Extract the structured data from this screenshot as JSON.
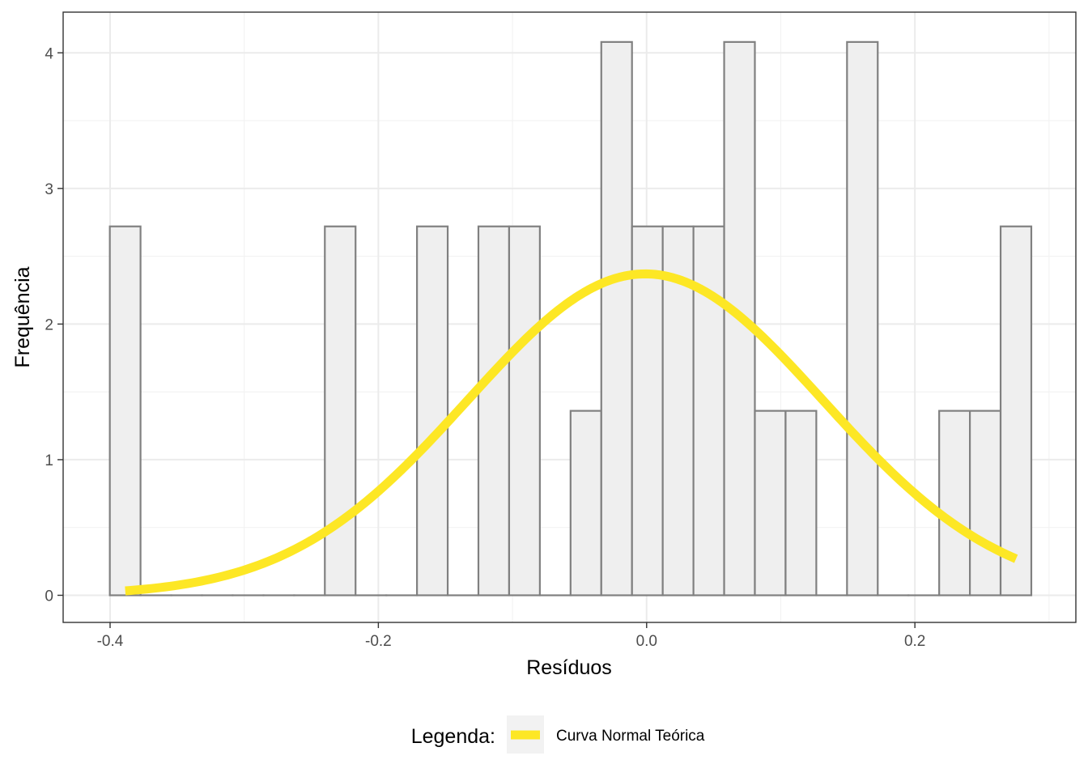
{
  "chart_data": {
    "type": "bar",
    "subtype": "histogram",
    "title": "",
    "xlabel": "Resíduos",
    "ylabel": "Frequência",
    "xlim": [
      -0.435,
      0.32
    ],
    "ylim": [
      -0.2,
      4.3
    ],
    "x_ticks": [
      -0.4,
      -0.2,
      0.0,
      0.2
    ],
    "x_tick_labels": [
      "-0.4",
      "-0.2",
      "0.0",
      "0.2"
    ],
    "y_ticks": [
      0,
      1,
      2,
      3,
      4
    ],
    "y_tick_labels": [
      "0",
      "1",
      "2",
      "3",
      "4"
    ],
    "bin_width": 0.0229,
    "bins": [
      {
        "x0": -0.4002,
        "x1": -0.3773,
        "count": 2.72
      },
      {
        "x0": -0.3773,
        "x1": -0.3544,
        "count": 0
      },
      {
        "x0": -0.3544,
        "x1": -0.3315,
        "count": 0
      },
      {
        "x0": -0.3315,
        "x1": -0.3086,
        "count": 0
      },
      {
        "x0": -0.3086,
        "x1": -0.2857,
        "count": 0
      },
      {
        "x0": -0.2857,
        "x1": -0.2628,
        "count": 0
      },
      {
        "x0": -0.2628,
        "x1": -0.2399,
        "count": 0
      },
      {
        "x0": -0.2399,
        "x1": -0.217,
        "count": 2.72
      },
      {
        "x0": -0.217,
        "x1": -0.1941,
        "count": 0
      },
      {
        "x0": -0.1941,
        "x1": -0.1712,
        "count": 0
      },
      {
        "x0": -0.1712,
        "x1": -0.1483,
        "count": 2.72
      },
      {
        "x0": -0.1483,
        "x1": -0.1254,
        "count": 0
      },
      {
        "x0": -0.1254,
        "x1": -0.1025,
        "count": 2.72
      },
      {
        "x0": -0.1025,
        "x1": -0.0796,
        "count": 2.72
      },
      {
        "x0": -0.0796,
        "x1": -0.0567,
        "count": 0
      },
      {
        "x0": -0.0567,
        "x1": -0.0338,
        "count": 1.36
      },
      {
        "x0": -0.0338,
        "x1": -0.0109,
        "count": 4.08
      },
      {
        "x0": -0.0109,
        "x1": 0.012,
        "count": 2.72
      },
      {
        "x0": 0.012,
        "x1": 0.0349,
        "count": 2.72
      },
      {
        "x0": 0.0349,
        "x1": 0.0578,
        "count": 2.72
      },
      {
        "x0": 0.0578,
        "x1": 0.0807,
        "count": 4.08
      },
      {
        "x0": 0.0807,
        "x1": 0.1036,
        "count": 1.36
      },
      {
        "x0": 0.1036,
        "x1": 0.1265,
        "count": 1.36
      },
      {
        "x0": 0.1265,
        "x1": 0.1494,
        "count": 0
      },
      {
        "x0": 0.1494,
        "x1": 0.1723,
        "count": 4.08
      },
      {
        "x0": 0.1723,
        "x1": 0.1952,
        "count": 0
      },
      {
        "x0": 0.1952,
        "x1": 0.2181,
        "count": 0
      },
      {
        "x0": 0.2181,
        "x1": 0.241,
        "count": 1.36
      },
      {
        "x0": 0.241,
        "x1": 0.2639,
        "count": 1.36
      },
      {
        "x0": 0.2639,
        "x1": 0.2868,
        "count": 2.72
      }
    ],
    "series": [
      {
        "kind": "line",
        "name": "Curva Normal Teórica",
        "color": "#FDE725",
        "mean": -0.001,
        "peak": 2.37,
        "sd": 0.1325,
        "x_range": [
          -0.3887,
          0.2754
        ]
      }
    ],
    "grid": true,
    "bar_fill": "#EFEFEF",
    "bar_stroke": "#808080",
    "legend": {
      "position": "bottom",
      "title": "Legenda:",
      "entries": [
        "Curva Normal Teórica"
      ]
    }
  }
}
